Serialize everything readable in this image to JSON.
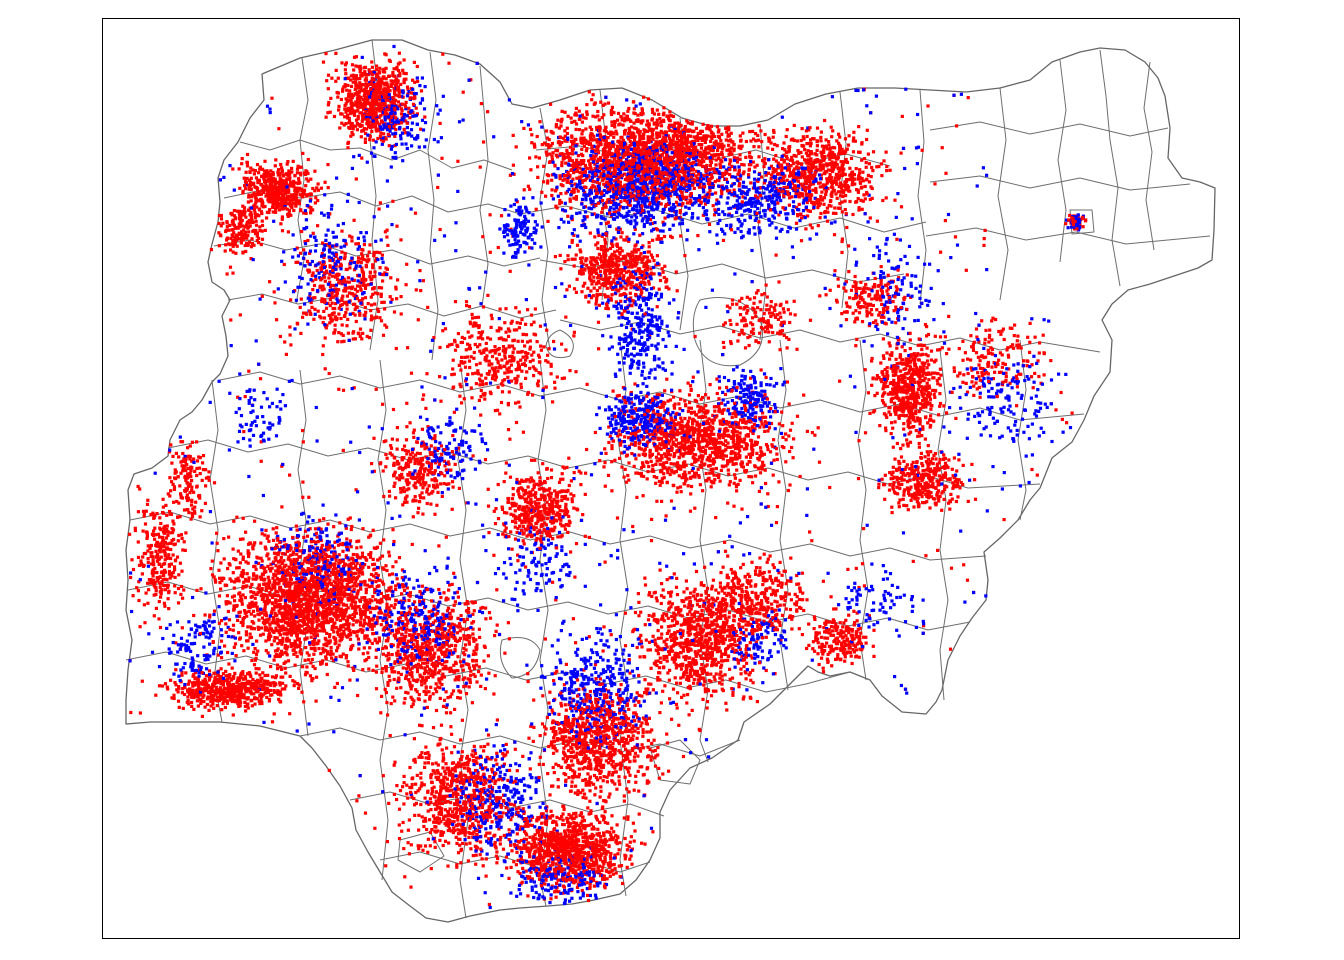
{
  "map": {
    "country": "Nigeria",
    "boundary_color": "#666666",
    "frame_color": "#000000",
    "background_color": "#ffffff"
  },
  "point_layers": [
    {
      "id": "red-points",
      "color": "#ff0000",
      "marker": "square"
    },
    {
      "id": "blue-points",
      "color": "#0000ff",
      "marker": "square"
    }
  ]
}
